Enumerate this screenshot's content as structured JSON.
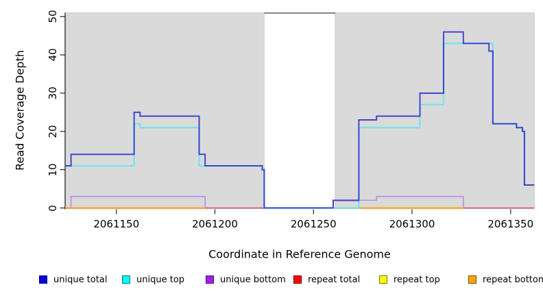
{
  "chart_data": {
    "type": "line",
    "subtype": "step-coverage-plot",
    "title": "",
    "xlabel": "Coordinate in Reference Genome",
    "ylabel": "Read Coverage Depth",
    "x_range": [
      2061124,
      2061362
    ],
    "y_range": [
      0,
      51
    ],
    "x_ticks": [
      2061150,
      2061200,
      2061250,
      2061300,
      2061350
    ],
    "y_ticks": [
      0,
      10,
      20,
      30,
      40,
      50
    ],
    "grid": false,
    "plot_background": "#ffffff",
    "shaded_region_color": "#DADADA",
    "shaded_regions": [
      {
        "from": 2061124,
        "to": 2061225
      },
      {
        "from": 2061261,
        "to": 2061362
      }
    ],
    "gap_region": {
      "from": 2061225,
      "to": 2061261
    },
    "series": [
      {
        "name": "repeat total",
        "legend_color": "#FF0000",
        "line_color": "#E04868",
        "width": 1.5,
        "opacity": 0.95,
        "segments": [
          [
            [
              2061124,
              0
            ],
            [
              2061362,
              0
            ]
          ]
        ]
      },
      {
        "name": "repeat top",
        "legend_color": "#FFFF00",
        "line_color": "#FFFF00",
        "width": 1.6,
        "opacity": 1,
        "segments": [
          [
            [
              2061260,
              0
            ],
            [
              2061326,
              0
            ]
          ]
        ]
      },
      {
        "name": "repeat bottom",
        "legend_color": "#FFA500",
        "line_color": "#FFA500",
        "width": 1.8,
        "opacity": 1,
        "segments": [
          [
            [
              2061124,
              0
            ],
            [
              2061195,
              0
            ]
          ],
          [
            [
              2061273,
              0
            ],
            [
              2061326,
              0
            ]
          ]
        ]
      },
      {
        "name": "unique bottom",
        "legend_color": "#A020F0",
        "line_color": "#BE8FE3",
        "width": 1.7,
        "opacity": 1,
        "segments": [
          [
            [
              2061127,
              0
            ],
            [
              2061127,
              3
            ],
            [
              2061195,
              3
            ],
            [
              2061195,
              0
            ]
          ],
          [
            [
              2061260,
              0
            ],
            [
              2061260,
              2
            ],
            [
              2061282,
              2
            ],
            [
              2061282,
              3
            ],
            [
              2061326,
              3
            ],
            [
              2061326,
              0
            ]
          ]
        ]
      },
      {
        "name": "unique top",
        "legend_color": "#00FFFF",
        "line_color": "#5FE6EE",
        "width": 2.2,
        "opacity": 0.85,
        "segments": [
          [
            [
              2061124,
              11
            ],
            [
              2061159,
              11
            ],
            [
              2061159,
              22
            ],
            [
              2061162,
              22
            ],
            [
              2061162,
              21
            ],
            [
              2061192,
              21
            ],
            [
              2061192,
              11
            ],
            [
              2061224,
              11
            ],
            [
              2061224,
              10
            ],
            [
              2061225,
              10
            ],
            [
              2061225,
              0
            ],
            [
              2061273,
              0
            ],
            [
              2061273,
              21
            ],
            [
              2061304,
              21
            ],
            [
              2061304,
              27
            ],
            [
              2061316,
              27
            ],
            [
              2061316,
              43
            ],
            [
              2061341,
              43
            ],
            [
              2061341,
              22
            ],
            [
              2061353,
              22
            ],
            [
              2061353,
              21
            ],
            [
              2061356,
              21
            ],
            [
              2061356,
              20
            ],
            [
              2061357,
              20
            ],
            [
              2061357,
              6
            ],
            [
              2061362,
              6
            ]
          ]
        ]
      },
      {
        "name": "unique total",
        "legend_color": "#0000E0",
        "line_color": "#2A2ACC",
        "width": 2.0,
        "opacity": 0.85,
        "segments": [
          [
            [
              2061124,
              11
            ],
            [
              2061127,
              11
            ],
            [
              2061127,
              14
            ],
            [
              2061159,
              14
            ],
            [
              2061159,
              25
            ],
            [
              2061162,
              25
            ],
            [
              2061162,
              24
            ],
            [
              2061192,
              24
            ],
            [
              2061192,
              14
            ],
            [
              2061195,
              14
            ],
            [
              2061195,
              11
            ],
            [
              2061224,
              11
            ],
            [
              2061224,
              10
            ],
            [
              2061225,
              10
            ],
            [
              2061225,
              0
            ],
            [
              2061260,
              0
            ],
            [
              2061260,
              2
            ],
            [
              2061273,
              2
            ],
            [
              2061273,
              23
            ],
            [
              2061282,
              23
            ],
            [
              2061282,
              24
            ],
            [
              2061304,
              24
            ],
            [
              2061304,
              30
            ],
            [
              2061316,
              30
            ],
            [
              2061316,
              46
            ],
            [
              2061326,
              46
            ],
            [
              2061326,
              43
            ],
            [
              2061339,
              43
            ],
            [
              2061339,
              41
            ],
            [
              2061341,
              41
            ],
            [
              2061341,
              22
            ],
            [
              2061353,
              22
            ],
            [
              2061353,
              21
            ],
            [
              2061356,
              21
            ],
            [
              2061356,
              20
            ],
            [
              2061357,
              20
            ],
            [
              2061357,
              6
            ],
            [
              2061362,
              6
            ]
          ]
        ]
      }
    ],
    "legend_order": [
      "unique total",
      "unique top",
      "unique bottom",
      "repeat total",
      "repeat top",
      "repeat bottom"
    ],
    "legend_position": "bottom"
  }
}
